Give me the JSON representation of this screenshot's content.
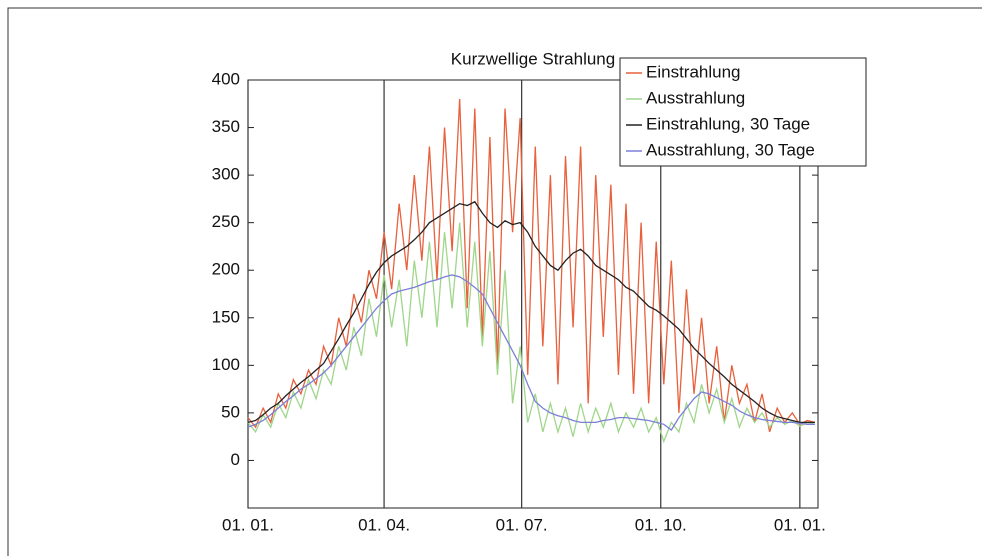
{
  "chart_data": {
    "type": "line",
    "title": "Kurzwellige Strahlung",
    "x": [
      0,
      5,
      10,
      15,
      20,
      25,
      30,
      35,
      40,
      45,
      50,
      55,
      60,
      65,
      70,
      75,
      80,
      85,
      90,
      95,
      100,
      105,
      110,
      115,
      120,
      125,
      130,
      135,
      140,
      145,
      150,
      155,
      160,
      165,
      170,
      175,
      180,
      185,
      190,
      195,
      200,
      205,
      210,
      215,
      220,
      225,
      230,
      235,
      240,
      245,
      250,
      255,
      260,
      265,
      270,
      275,
      280,
      285,
      290,
      295,
      300,
      305,
      310,
      315,
      320,
      325,
      330,
      335,
      340,
      345,
      350,
      355,
      360,
      365,
      370,
      375
    ],
    "series": [
      {
        "name": "Einstrahlung",
        "color": "#e8603c",
        "values": [
          45,
          35,
          55,
          40,
          70,
          55,
          85,
          70,
          95,
          80,
          120,
          100,
          150,
          120,
          175,
          145,
          200,
          170,
          240,
          180,
          270,
          200,
          300,
          210,
          330,
          190,
          350,
          220,
          380,
          160,
          370,
          130,
          340,
          100,
          370,
          240,
          360,
          90,
          330,
          120,
          300,
          80,
          320,
          140,
          330,
          60,
          300,
          130,
          290,
          90,
          270,
          70,
          250,
          60,
          230,
          80,
          210,
          50,
          180,
          70,
          150,
          60,
          120,
          40,
          100,
          60,
          80,
          40,
          70,
          30,
          55,
          40,
          50,
          38,
          42,
          40
        ]
      },
      {
        "name": "Ausstrahlung",
        "color": "#9fd68a",
        "values": [
          40,
          30,
          48,
          35,
          60,
          45,
          72,
          55,
          85,
          65,
          95,
          80,
          120,
          95,
          140,
          110,
          170,
          130,
          195,
          140,
          190,
          120,
          210,
          150,
          230,
          140,
          240,
          160,
          250,
          140,
          230,
          120,
          220,
          90,
          200,
          60,
          120,
          40,
          70,
          30,
          60,
          30,
          55,
          25,
          60,
          30,
          55,
          35,
          60,
          30,
          50,
          35,
          55,
          30,
          45,
          20,
          40,
          30,
          60,
          40,
          80,
          50,
          75,
          40,
          65,
          35,
          55,
          40,
          50,
          35,
          45,
          38,
          42,
          36,
          40,
          38
        ]
      },
      {
        "name": "Einstrahlung, 30 Tage",
        "color": "#222222",
        "values": [
          40,
          42,
          48,
          55,
          60,
          68,
          75,
          82,
          88,
          95,
          102,
          115,
          128,
          142,
          155,
          170,
          185,
          198,
          208,
          215,
          220,
          225,
          232,
          240,
          250,
          255,
          260,
          265,
          270,
          268,
          272,
          260,
          250,
          245,
          252,
          248,
          250,
          240,
          225,
          215,
          205,
          200,
          210,
          218,
          222,
          215,
          205,
          200,
          195,
          190,
          182,
          178,
          170,
          162,
          158,
          152,
          145,
          138,
          128,
          118,
          110,
          102,
          95,
          88,
          80,
          74,
          68,
          62,
          55,
          50,
          46,
          44,
          42,
          40,
          40,
          40
        ]
      },
      {
        "name": "Ausstrahlung, 30 Tage",
        "color": "#7b7fd8",
        "values": [
          35,
          38,
          42,
          48,
          55,
          62,
          68,
          75,
          80,
          86,
          92,
          100,
          110,
          120,
          130,
          140,
          150,
          160,
          168,
          175,
          178,
          180,
          182,
          185,
          188,
          190,
          193,
          195,
          193,
          188,
          182,
          175,
          160,
          145,
          130,
          115,
          100,
          80,
          62,
          55,
          50,
          47,
          45,
          42,
          40,
          40,
          40,
          42,
          43,
          45,
          45,
          44,
          43,
          42,
          40,
          38,
          32,
          45,
          55,
          65,
          72,
          70,
          66,
          62,
          58,
          52,
          48,
          45,
          43,
          42,
          41,
          40,
          40,
          39,
          38,
          38
        ]
      }
    ],
    "xlim": [
      0,
      377
    ],
    "xticks": [
      {
        "value": 0,
        "label": "01. 01."
      },
      {
        "value": 90,
        "label": "01. 04."
      },
      {
        "value": 181,
        "label": "01. 07."
      },
      {
        "value": 273,
        "label": "01. 10."
      },
      {
        "value": 365,
        "label": "01. 01."
      }
    ],
    "ylim": [
      -50,
      400
    ],
    "yticks": [
      0,
      50,
      100,
      150,
      200,
      250,
      300,
      350,
      400
    ],
    "xgrid": true,
    "legend": "upper right"
  }
}
